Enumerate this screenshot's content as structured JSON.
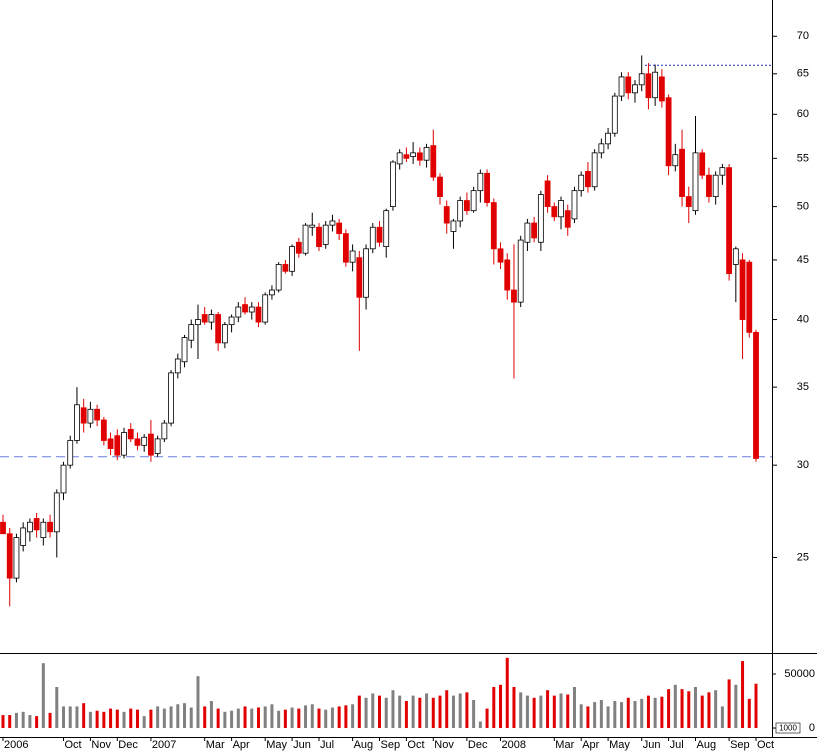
{
  "chart_data": {
    "type": "candlestick",
    "categories": [
      "2006",
      null,
      null,
      null,
      null,
      null,
      null,
      null,
      null,
      "Oct",
      null,
      null,
      null,
      "Nov",
      null,
      null,
      null,
      "Dec",
      null,
      null,
      null,
      null,
      "2007",
      null,
      null,
      null,
      null,
      null,
      null,
      null,
      "Mar",
      null,
      null,
      null,
      "Apr",
      null,
      null,
      null,
      null,
      "May",
      null,
      null,
      null,
      "Jun",
      null,
      null,
      null,
      "Jul",
      null,
      null,
      null,
      null,
      "Aug",
      null,
      null,
      null,
      "Sep",
      null,
      null,
      null,
      "Oct",
      null,
      null,
      null,
      "Nov",
      null,
      null,
      null,
      null,
      "Dec",
      null,
      null,
      null,
      null,
      "2008",
      null,
      null,
      null,
      null,
      null,
      null,
      null,
      "Mar",
      null,
      null,
      null,
      "Apr",
      null,
      null,
      null,
      "May",
      null,
      null,
      null,
      null,
      "Jun",
      null,
      null,
      null,
      "Jul",
      null,
      null,
      null,
      "Aug",
      null,
      null,
      null,
      null,
      "Sep",
      null,
      null,
      null,
      "Oct"
    ],
    "ohlc": [
      [
        26.8,
        27.2,
        26.2,
        26.2
      ],
      [
        26.2,
        26.5,
        22.7,
        24.0
      ],
      [
        24.0,
        26.2,
        23.8,
        26.0
      ],
      [
        25.6,
        26.8,
        25.3,
        26.5
      ],
      [
        26.3,
        27.0,
        25.8,
        26.8
      ],
      [
        27.0,
        27.3,
        26.0,
        26.4
      ],
      [
        26.0,
        27.0,
        25.6,
        26.8
      ],
      [
        26.8,
        27.2,
        26.0,
        26.3
      ],
      [
        26.3,
        28.6,
        25.0,
        28.4
      ],
      [
        28.4,
        30.2,
        28.0,
        30.0
      ],
      [
        30.0,
        31.8,
        29.8,
        31.5
      ],
      [
        31.5,
        35.0,
        31.3,
        33.8
      ],
      [
        33.6,
        34.2,
        32.0,
        32.6
      ],
      [
        32.6,
        34.0,
        32.3,
        33.5
      ],
      [
        33.5,
        33.8,
        32.4,
        32.8
      ],
      [
        32.8,
        33.0,
        31.2,
        31.5
      ],
      [
        31.6,
        32.0,
        30.6,
        31.0
      ],
      [
        31.8,
        32.2,
        30.3,
        30.6
      ],
      [
        30.6,
        32.3,
        30.4,
        32.0
      ],
      [
        32.2,
        32.6,
        31.4,
        31.6
      ],
      [
        31.6,
        32.0,
        30.9,
        31.2
      ],
      [
        31.2,
        31.9,
        30.8,
        31.7
      ],
      [
        31.9,
        32.8,
        30.2,
        30.6
      ],
      [
        30.7,
        31.8,
        30.5,
        31.6
      ],
      [
        31.6,
        32.8,
        31.4,
        32.6
      ],
      [
        32.6,
        36.2,
        32.4,
        36.0
      ],
      [
        36.0,
        37.4,
        35.6,
        37.0
      ],
      [
        36.8,
        38.8,
        36.4,
        38.6
      ],
      [
        38.4,
        40.0,
        37.8,
        39.6
      ],
      [
        39.6,
        41.2,
        37.0,
        40.0
      ],
      [
        40.4,
        41.0,
        39.6,
        39.8
      ],
      [
        39.8,
        40.8,
        39.2,
        40.4
      ],
      [
        40.4,
        40.6,
        37.6,
        38.2
      ],
      [
        38.2,
        39.8,
        37.8,
        39.6
      ],
      [
        39.6,
        40.4,
        39.0,
        40.2
      ],
      [
        40.2,
        41.4,
        39.8,
        41.0
      ],
      [
        41.2,
        41.8,
        40.4,
        40.6
      ],
      [
        40.6,
        41.4,
        40.0,
        41.0
      ],
      [
        41.0,
        41.4,
        39.4,
        39.8
      ],
      [
        39.8,
        42.2,
        39.6,
        42.0
      ],
      [
        42.0,
        42.8,
        41.6,
        42.4
      ],
      [
        42.4,
        44.8,
        42.2,
        44.6
      ],
      [
        44.6,
        45.0,
        43.8,
        44.0
      ],
      [
        44.0,
        46.4,
        43.6,
        46.2
      ],
      [
        46.6,
        47.0,
        45.2,
        45.6
      ],
      [
        45.6,
        48.4,
        45.4,
        48.2
      ],
      [
        48.0,
        49.4,
        47.2,
        48.2
      ],
      [
        48.0,
        48.4,
        45.8,
        46.2
      ],
      [
        46.4,
        48.6,
        46.0,
        48.2
      ],
      [
        48.2,
        49.2,
        47.6,
        48.6
      ],
      [
        48.4,
        48.8,
        46.8,
        47.4
      ],
      [
        47.4,
        47.8,
        44.4,
        44.8
      ],
      [
        44.8,
        46.4,
        44.0,
        45.8
      ],
      [
        45.2,
        45.8,
        37.6,
        41.8
      ],
      [
        41.8,
        46.4,
        40.8,
        46.0
      ],
      [
        46.0,
        48.4,
        45.6,
        48.0
      ],
      [
        48.0,
        48.6,
        46.2,
        46.6
      ],
      [
        46.2,
        49.8,
        45.2,
        49.6
      ],
      [
        50.0,
        54.8,
        49.6,
        54.6
      ],
      [
        54.4,
        56.0,
        53.8,
        55.6
      ],
      [
        55.4,
        56.2,
        54.6,
        55.0
      ],
      [
        55.2,
        56.8,
        54.4,
        55.6
      ],
      [
        55.6,
        56.2,
        54.2,
        54.8
      ],
      [
        54.8,
        56.6,
        54.0,
        56.2
      ],
      [
        56.4,
        58.2,
        52.6,
        53.0
      ],
      [
        53.0,
        53.4,
        50.2,
        51.0
      ],
      [
        50.0,
        50.6,
        47.4,
        48.4
      ],
      [
        47.6,
        48.8,
        46.0,
        48.6
      ],
      [
        48.6,
        51.0,
        48.0,
        50.6
      ],
      [
        50.6,
        51.4,
        49.2,
        49.6
      ],
      [
        49.6,
        52.0,
        49.4,
        51.6
      ],
      [
        51.6,
        53.8,
        50.4,
        53.4
      ],
      [
        53.4,
        53.8,
        50.0,
        50.4
      ],
      [
        50.4,
        50.8,
        44.6,
        46.0
      ],
      [
        46.0,
        46.6,
        44.2,
        44.8
      ],
      [
        45.0,
        45.6,
        41.6,
        42.4
      ],
      [
        42.4,
        46.4,
        35.6,
        41.4
      ],
      [
        41.4,
        47.2,
        41.0,
        46.8
      ],
      [
        46.6,
        48.8,
        45.8,
        48.4
      ],
      [
        48.4,
        49.0,
        46.6,
        47.0
      ],
      [
        46.6,
        51.6,
        45.8,
        51.2
      ],
      [
        52.6,
        53.2,
        49.4,
        50.0
      ],
      [
        50.0,
        50.4,
        48.6,
        49.0
      ],
      [
        49.0,
        51.0,
        47.8,
        50.6
      ],
      [
        49.6,
        50.2,
        47.2,
        48.0
      ],
      [
        48.8,
        52.0,
        48.4,
        51.6
      ],
      [
        51.6,
        53.6,
        51.0,
        53.2
      ],
      [
        53.6,
        54.6,
        51.4,
        52.0
      ],
      [
        52.0,
        56.0,
        51.6,
        55.6
      ],
      [
        55.6,
        57.2,
        55.0,
        56.6
      ],
      [
        56.6,
        58.4,
        56.0,
        57.8
      ],
      [
        57.8,
        62.6,
        57.4,
        62.2
      ],
      [
        62.2,
        65.2,
        61.6,
        64.6
      ],
      [
        64.6,
        65.2,
        61.8,
        62.6
      ],
      [
        62.6,
        64.2,
        61.4,
        63.6
      ],
      [
        63.6,
        67.4,
        62.8,
        65.0
      ],
      [
        65.0,
        66.4,
        60.6,
        62.0
      ],
      [
        62.0,
        66.2,
        61.0,
        65.2
      ],
      [
        64.6,
        65.6,
        60.8,
        61.6
      ],
      [
        62.0,
        62.4,
        53.2,
        54.2
      ],
      [
        54.2,
        56.6,
        53.6,
        55.4
      ],
      [
        56.0,
        58.2,
        50.0,
        51.0
      ],
      [
        51.0,
        52.0,
        48.4,
        50.0
      ],
      [
        49.6,
        59.8,
        49.2,
        55.6
      ],
      [
        55.6,
        56.0,
        52.8,
        53.2
      ],
      [
        53.2,
        54.0,
        50.4,
        51.0
      ],
      [
        51.0,
        53.6,
        50.2,
        53.2
      ],
      [
        53.2,
        54.4,
        52.2,
        54.0
      ],
      [
        54.0,
        54.4,
        43.2,
        43.8
      ],
      [
        44.6,
        46.2,
        41.4,
        46.0
      ],
      [
        45.0,
        45.6,
        37.0,
        40.0
      ],
      [
        44.8,
        45.0,
        38.6,
        39.0
      ],
      [
        39.0,
        39.2,
        30.2,
        30.4
      ]
    ],
    "up_color": "#ffffff",
    "down_color": "#e00000",
    "log_scale": true,
    "ylim": [
      20.7,
      75.2
    ],
    "yticks": [
      25,
      30,
      35,
      40,
      45,
      50,
      55,
      60,
      65,
      70
    ],
    "reference_lines": [
      {
        "value": 30.5,
        "style": "dashed",
        "color": "#6a7fe0"
      },
      {
        "value": 66.1,
        "style": "dotted",
        "color": "#2030c0"
      }
    ],
    "volume": {
      "values": [
        12000,
        12000,
        14000,
        15000,
        12000,
        11000,
        60000,
        14000,
        38000,
        20000,
        20000,
        20000,
        23000,
        15000,
        16000,
        15000,
        18000,
        17000,
        15000,
        18000,
        17000,
        11000,
        17000,
        20000,
        18000,
        20000,
        22000,
        23000,
        19000,
        48000,
        20000,
        25000,
        18000,
        15000,
        16000,
        18000,
        20000,
        18000,
        19000,
        20000,
        22000,
        16000,
        17000,
        19000,
        18000,
        21000,
        22000,
        18000,
        17000,
        19000,
        20000,
        21000,
        22000,
        30000,
        28000,
        32000,
        30000,
        28000,
        35000,
        30000,
        25000,
        30000,
        28000,
        32000,
        28000,
        30000,
        35000,
        30000,
        32000,
        33000,
        26000,
        6000,
        18000,
        38000,
        40000,
        65000,
        38000,
        33000,
        30000,
        28000,
        30000,
        35000,
        30000,
        32000,
        31000,
        38000,
        22000,
        20000,
        24000,
        26000,
        20000,
        25000,
        24000,
        28000,
        25000,
        27000,
        30000,
        28000,
        29000,
        36000,
        40000,
        36000,
        34000,
        38000,
        30000,
        33000,
        35000,
        20000,
        45000,
        40000,
        62000,
        27000,
        41000
      ],
      "up_color": "#808080",
      "down_color": "#e00000",
      "ylim": [
        -8300,
        67600
      ],
      "yticks": [
        0,
        50000
      ],
      "unit_label": "1000"
    }
  }
}
